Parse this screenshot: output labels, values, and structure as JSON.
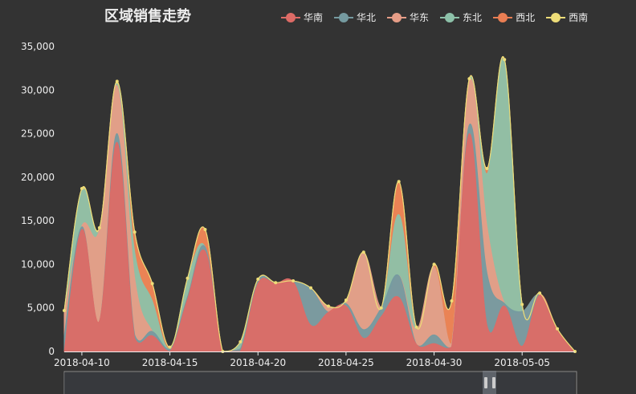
{
  "chart_data": {
    "type": "area",
    "title": "区域销售走势",
    "x": [
      "2018-04-09",
      "2018-04-10",
      "2018-04-11",
      "2018-04-12",
      "2018-04-13",
      "2018-04-14",
      "2018-04-15",
      "2018-04-16",
      "2018-04-17",
      "2018-04-18",
      "2018-04-19",
      "2018-04-20",
      "2018-04-21",
      "2018-04-22",
      "2018-04-23",
      "2018-04-24",
      "2018-04-25",
      "2018-04-26",
      "2018-04-27",
      "2018-04-28",
      "2018-04-29",
      "2018-04-30",
      "2018-05-01",
      "2018-05-02",
      "2018-05-03",
      "2018-05-04",
      "2018-05-05",
      "2018-05-06",
      "2018-05-07",
      "2018-05-08"
    ],
    "x_tick_labels": [
      "2018-04-10",
      "2018-04-15",
      "2018-04-20",
      "2018-04-25",
      "2018-04-30",
      "2018-05-05"
    ],
    "ylim": [
      0,
      35000
    ],
    "y_ticks": [
      0,
      5000,
      10000,
      15000,
      20000,
      25000,
      30000,
      35000
    ],
    "y_tick_labels": [
      "0",
      "5,000",
      "10,000",
      "15,000",
      "20,000",
      "25,000",
      "30,000",
      "35,000"
    ],
    "grid": false,
    "legend_position": "top-right",
    "stacked": true,
    "series": [
      {
        "name": "华南",
        "color": "#dd6b66",
        "values": [
          0,
          14000,
          3500,
          24000,
          1500,
          1800,
          0,
          6000,
          11500,
          0,
          0,
          7800,
          7800,
          8000,
          3000,
          4500,
          5200,
          1500,
          4000,
          6200,
          800,
          900,
          500,
          25000,
          3000,
          5200,
          600,
          6500,
          2500,
          0
        ]
      },
      {
        "name": "华北",
        "color": "#759aa0",
        "values": [
          1800,
          300,
          0,
          1000,
          400,
          500,
          300,
          300,
          500,
          0,
          300,
          300,
          0,
          0,
          4200,
          0,
          300,
          1000,
          1000,
          2500,
          0,
          1000,
          0,
          1000,
          6000,
          300,
          4000,
          0,
          0,
          0
        ]
      },
      {
        "name": "华东",
        "color": "#e69d87",
        "values": [
          2500,
          100,
          10500,
          5500,
          6500,
          0,
          0,
          0,
          0,
          0,
          0,
          0,
          0,
          0,
          0,
          600,
          0,
          8800,
          0,
          0,
          1700,
          7800,
          400,
          5000,
          5400,
          0,
          0,
          0,
          0,
          0
        ]
      },
      {
        "name": "东北",
        "color": "#8dc1a9",
        "values": [
          0,
          4000,
          0,
          200,
          3000,
          3500,
          0,
          2000,
          0,
          0,
          700,
          0,
          0,
          0,
          0,
          0,
          0,
          0,
          0,
          7000,
          0,
          0,
          0,
          0,
          6000,
          27800,
          800,
          0,
          0,
          0
        ]
      },
      {
        "name": "西北",
        "color": "#ea7e53",
        "values": [
          200,
          0,
          0,
          0,
          2000,
          2000,
          0,
          0,
          1900,
          0,
          0,
          0,
          0,
          0,
          0,
          0,
          0,
          0,
          0,
          3700,
          300,
          300,
          4900,
          300,
          600,
          0,
          0,
          0,
          0,
          0
        ]
      },
      {
        "name": "西南",
        "color": "#eedd78",
        "values": [
          200,
          300,
          200,
          300,
          300,
          0,
          200,
          100,
          100,
          0,
          100,
          200,
          100,
          100,
          100,
          100,
          400,
          100,
          0,
          100,
          0,
          0,
          0,
          0,
          0,
          200,
          0,
          200,
          100,
          0
        ]
      }
    ]
  }
}
